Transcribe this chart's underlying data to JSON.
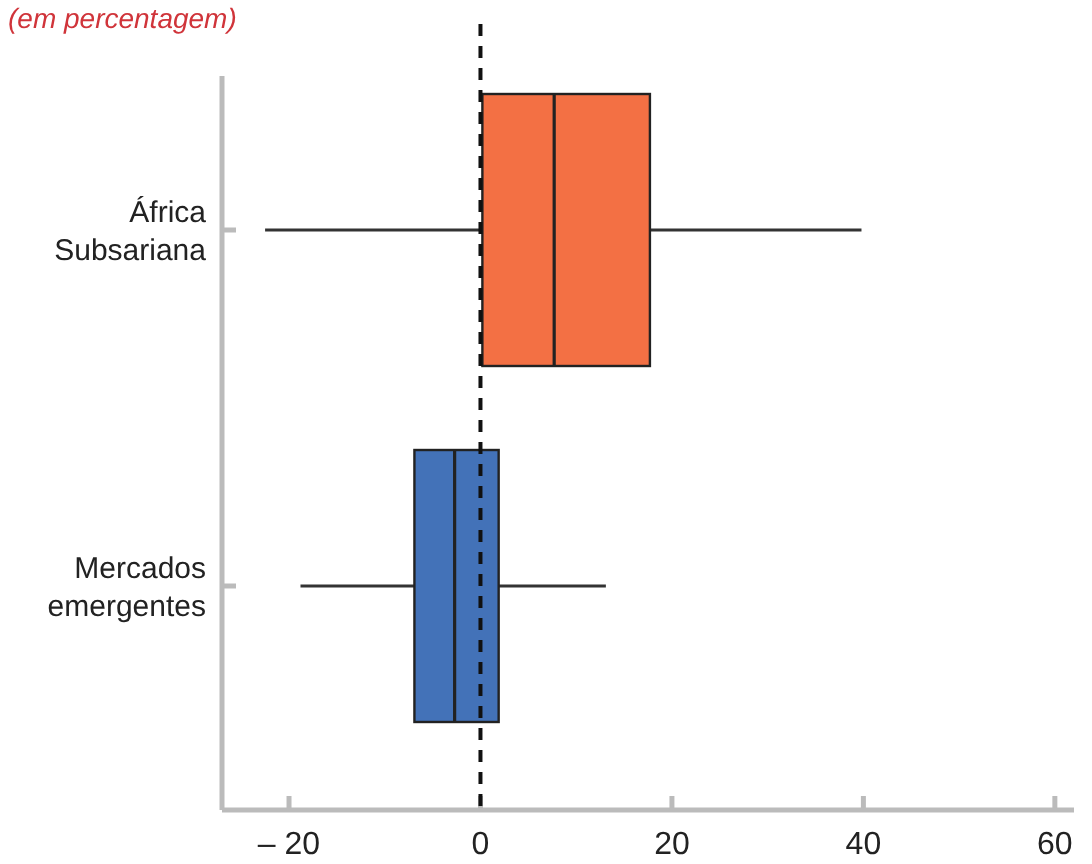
{
  "chart_data": {
    "type": "box",
    "title": "(em percentagem)",
    "orientation": "horizontal",
    "categories": [
      "África Subsariana",
      "Mercados emergentes"
    ],
    "boxes": [
      {
        "low": -22.5,
        "q1": 0.2,
        "median": 7.7,
        "q3": 17.7,
        "high": 39.8
      },
      {
        "low": -18.8,
        "q1": -6.9,
        "median": -2.7,
        "q3": 1.9,
        "high": 13.1
      }
    ],
    "colors": [
      "#f37044",
      "#4372b8"
    ],
    "xlim": [
      -27,
      62
    ],
    "xticks": [
      {
        "value": -20,
        "label": "– 20"
      },
      0,
      20,
      40,
      60
    ],
    "ref_lines": [
      {
        "axis": "x",
        "value": 0,
        "color": "#111111",
        "line_style": "dashed"
      }
    ],
    "grid": false
  }
}
